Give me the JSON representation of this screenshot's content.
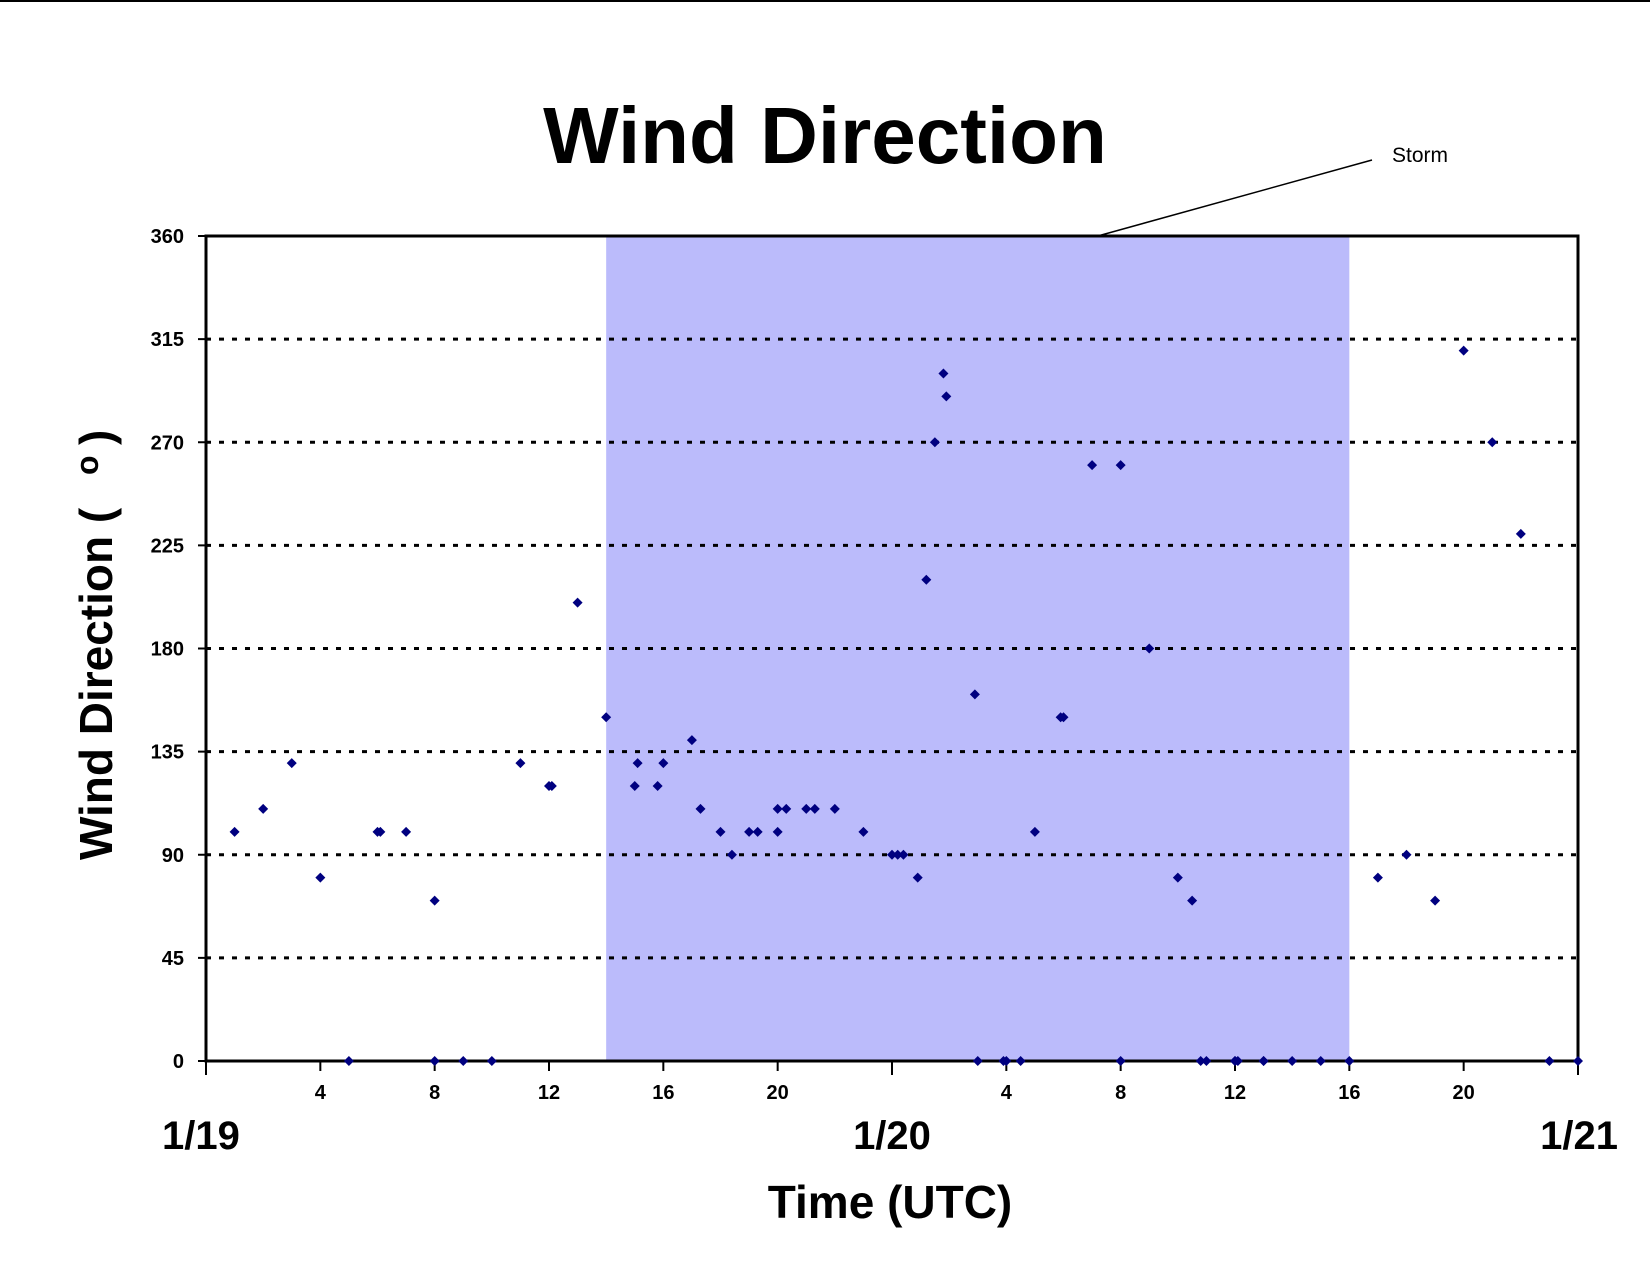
{
  "chart_data": {
    "type": "scatter",
    "title": "Wind Direction",
    "xlabel": "Time (UTC)",
    "ylabel": "Wind Direction ( o )",
    "ylabel_text": "Wind Direction (",
    "ylabel_degree": "o",
    "ylabel_close": ")",
    "ylim": [
      0,
      360
    ],
    "yticks": [
      0,
      45,
      90,
      135,
      180,
      225,
      270,
      315,
      360
    ],
    "xlim": [
      0,
      48
    ],
    "xtick_hours": [
      4,
      8,
      12,
      16,
      20,
      28,
      32,
      36,
      40,
      44
    ],
    "xtick_labels": [
      "4",
      "8",
      "12",
      "16",
      "20",
      "4",
      "8",
      "12",
      "16",
      "20"
    ],
    "day_labels": [
      {
        "label": "1/19",
        "hour": 0
      },
      {
        "label": "1/20",
        "hour": 24
      },
      {
        "label": "1/21",
        "hour": 48
      }
    ],
    "gridlines": "horizontal dotted",
    "shaded_region": {
      "label": "Storm",
      "start_hour": 14,
      "end_hour": 40,
      "color": "#bbbbfb"
    },
    "annotation": {
      "text": "Storm"
    },
    "marker_color": "#000080",
    "series": [
      {
        "x": [
          1,
          2,
          3,
          4,
          5,
          6,
          6.1,
          7,
          8,
          8,
          9,
          10,
          11,
          12,
          12.1,
          13,
          14,
          15,
          15.1,
          15.8,
          16,
          17,
          17.3,
          18,
          18.4,
          19,
          19.3,
          20,
          20,
          20.3,
          21,
          21.3,
          22,
          23,
          24,
          24.2,
          24.4,
          24.9,
          25.2,
          25.5,
          25.8,
          25.9,
          26.9,
          27,
          27.9,
          28,
          28.5,
          29,
          29.9,
          30,
          31,
          32,
          32,
          33,
          34,
          34.5,
          34.8,
          35,
          36,
          36,
          36.1,
          37,
          37,
          38,
          39,
          40,
          41,
          42,
          43,
          44,
          45,
          46,
          47,
          48
        ],
        "y": [
          100,
          110,
          130,
          80,
          0,
          100,
          100,
          100,
          70,
          0,
          0,
          0,
          130,
          120,
          120,
          200,
          150,
          120,
          130,
          120,
          130,
          140,
          110,
          100,
          90,
          100,
          100,
          110,
          100,
          110,
          110,
          110,
          110,
          100,
          90,
          90,
          90,
          80,
          210,
          270,
          300,
          290,
          160,
          0,
          0,
          0,
          0,
          100,
          150,
          150,
          260,
          260,
          0,
          180,
          80,
          70,
          0,
          0,
          0,
          0,
          0,
          0,
          0,
          0,
          0,
          0,
          80,
          90,
          70,
          310,
          270,
          230,
          0,
          0
        ]
      }
    ]
  }
}
